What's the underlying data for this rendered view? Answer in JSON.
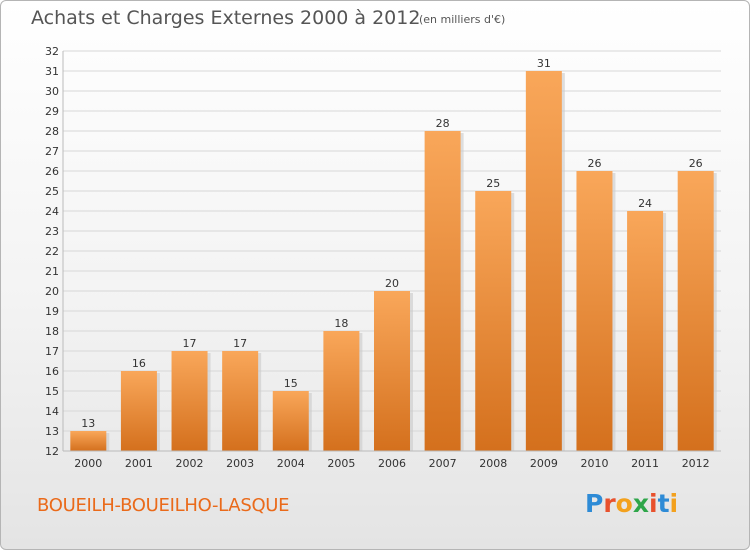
{
  "title": "Achats et Charges Externes 2000 à 2012",
  "subtitle": "(en milliers d'€)",
  "commune": "BOUEILH-BOUEILHO-LASQUE",
  "logo": {
    "letters": [
      "P",
      "r",
      "o",
      "x",
      "i",
      "t",
      "i"
    ],
    "colors": [
      "#2e8bd6",
      "#e8512d",
      "#f3a11d",
      "#2fa64a",
      "#e8512d",
      "#2e8bd6",
      "#f3a11d"
    ]
  },
  "chart_data": {
    "type": "bar",
    "title": "Achats et Charges Externes 2000 à 2012",
    "subtitle": "(en milliers d'€)",
    "categories": [
      "2000",
      "2001",
      "2002",
      "2003",
      "2004",
      "2005",
      "2006",
      "2007",
      "2008",
      "2009",
      "2010",
      "2011",
      "2012"
    ],
    "values": [
      13,
      16,
      17,
      17,
      15,
      18,
      20,
      28,
      25,
      31,
      26,
      24,
      26
    ],
    "ylim": [
      12,
      32
    ],
    "yticks": [
      12,
      13,
      14,
      15,
      16,
      17,
      18,
      19,
      20,
      21,
      22,
      23,
      24,
      25,
      26,
      27,
      28,
      29,
      30,
      31,
      32
    ],
    "grid": true,
    "colors": {
      "bar_top": "#f9a75a",
      "bar_bottom": "#d4701d",
      "bar_light": "#f7a45a",
      "grid": "#d7d7d7",
      "axis_text": "#333333"
    }
  }
}
